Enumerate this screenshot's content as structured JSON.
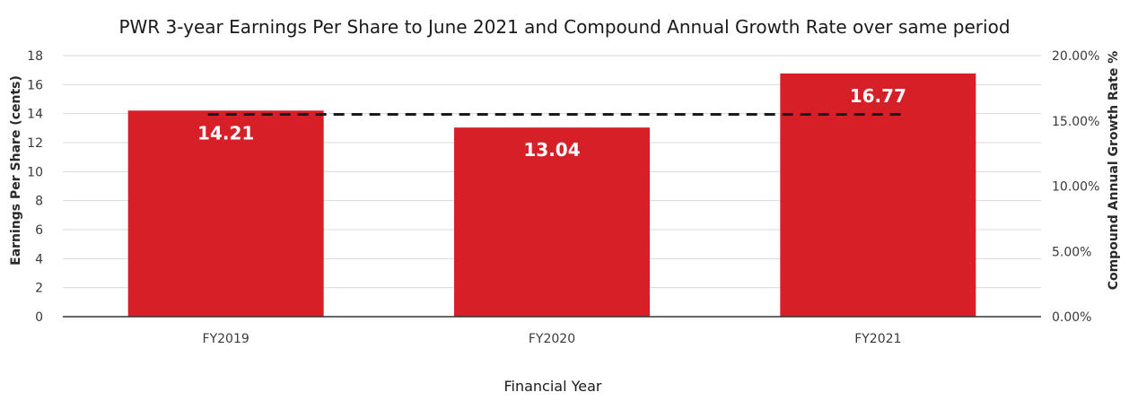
{
  "chart_data": {
    "type": "bar",
    "title": "PWR 3-year Earnings Per Share to June 2021 and Compound Annual Growth Rate over same period",
    "categories": [
      "FY2019",
      "FY2020",
      "FY2021"
    ],
    "values": [
      14.21,
      13.04,
      16.77
    ],
    "value_labels": [
      "14.21",
      "13.04",
      "16.77"
    ],
    "xlabel": "Financial Year",
    "ylabel": "Earnings Per Share (cents)",
    "ylim": [
      0,
      18
    ],
    "y_ticks": [
      0,
      2,
      4,
      6,
      8,
      10,
      12,
      14,
      16,
      18
    ],
    "y2label": "Compound Annual Growth Rate %",
    "y2lim": [
      0,
      20
    ],
    "y2_ticks": [
      0,
      5,
      10,
      15,
      20
    ],
    "y2_tick_labels": [
      "0.00%",
      "5.00%",
      "10.00%",
      "15.00%",
      "20.00%"
    ],
    "cagr_line": {
      "value": 15.5,
      "axis": "secondary",
      "style": "dashed",
      "from_category": "FY2019",
      "to_category": "FY2021"
    },
    "grid": true,
    "legend": "none",
    "colors": {
      "bar": "#d71f27",
      "bar_label": "#ffffff",
      "cagr_line": "#1a1a1a",
      "grid": "#d9d9d9",
      "axis": "#333333"
    }
  }
}
